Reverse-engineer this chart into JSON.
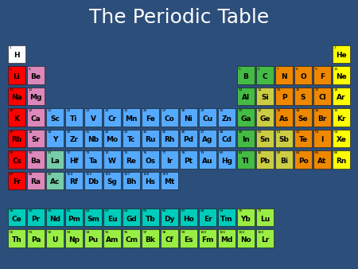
{
  "title": "The Periodic Table",
  "title_color": "white",
  "title_fontsize": 18,
  "bg_outer": "#2C4E7A",
  "bg_inner": "#000000",
  "elements": [
    {
      "sym": "H",
      "num": 1,
      "col": 0,
      "row": 0,
      "color": "#FFFFFF"
    },
    {
      "sym": "He",
      "num": 2,
      "col": 17,
      "row": 0,
      "color": "#FFFF00"
    },
    {
      "sym": "Li",
      "num": 3,
      "col": 0,
      "row": 1,
      "color": "#FF0000"
    },
    {
      "sym": "Be",
      "num": 4,
      "col": 1,
      "row": 1,
      "color": "#DD88BB"
    },
    {
      "sym": "B",
      "num": 5,
      "col": 12,
      "row": 1,
      "color": "#44BB44"
    },
    {
      "sym": "C",
      "num": 6,
      "col": 13,
      "row": 1,
      "color": "#44BB44"
    },
    {
      "sym": "N",
      "num": 7,
      "col": 14,
      "row": 1,
      "color": "#EE8800"
    },
    {
      "sym": "O",
      "num": 8,
      "col": 15,
      "row": 1,
      "color": "#EE8800"
    },
    {
      "sym": "F",
      "num": 9,
      "col": 16,
      "row": 1,
      "color": "#EE8800"
    },
    {
      "sym": "Ne",
      "num": 10,
      "col": 17,
      "row": 1,
      "color": "#FFFF00"
    },
    {
      "sym": "Na",
      "num": 11,
      "col": 0,
      "row": 2,
      "color": "#FF0000"
    },
    {
      "sym": "Mg",
      "num": 12,
      "col": 1,
      "row": 2,
      "color": "#DD88BB"
    },
    {
      "sym": "Al",
      "num": 13,
      "col": 12,
      "row": 2,
      "color": "#44BB44"
    },
    {
      "sym": "Si",
      "num": 14,
      "col": 13,
      "row": 2,
      "color": "#CCCC44"
    },
    {
      "sym": "P",
      "num": 15,
      "col": 14,
      "row": 2,
      "color": "#EE8800"
    },
    {
      "sym": "S",
      "num": 16,
      "col": 15,
      "row": 2,
      "color": "#EE8800"
    },
    {
      "sym": "Cl",
      "num": 17,
      "col": 16,
      "row": 2,
      "color": "#EE8800"
    },
    {
      "sym": "Ar",
      "num": 18,
      "col": 17,
      "row": 2,
      "color": "#FFFF00"
    },
    {
      "sym": "K",
      "num": 19,
      "col": 0,
      "row": 3,
      "color": "#FF0000"
    },
    {
      "sym": "Ca",
      "num": 20,
      "col": 1,
      "row": 3,
      "color": "#DD88BB"
    },
    {
      "sym": "Sc",
      "num": 21,
      "col": 2,
      "row": 3,
      "color": "#55AAFF"
    },
    {
      "sym": "Ti",
      "num": 22,
      "col": 3,
      "row": 3,
      "color": "#55AAFF"
    },
    {
      "sym": "V",
      "num": 23,
      "col": 4,
      "row": 3,
      "color": "#55AAFF"
    },
    {
      "sym": "Cr",
      "num": 24,
      "col": 5,
      "row": 3,
      "color": "#55AAFF"
    },
    {
      "sym": "Mn",
      "num": 25,
      "col": 6,
      "row": 3,
      "color": "#55AAFF"
    },
    {
      "sym": "Fe",
      "num": 26,
      "col": 7,
      "row": 3,
      "color": "#55AAFF"
    },
    {
      "sym": "Co",
      "num": 27,
      "col": 8,
      "row": 3,
      "color": "#55AAFF"
    },
    {
      "sym": "Ni",
      "num": 28,
      "col": 9,
      "row": 3,
      "color": "#55AAFF"
    },
    {
      "sym": "Cu",
      "num": 29,
      "col": 10,
      "row": 3,
      "color": "#55AAFF"
    },
    {
      "sym": "Zn",
      "num": 30,
      "col": 11,
      "row": 3,
      "color": "#55AAFF"
    },
    {
      "sym": "Ga",
      "num": 31,
      "col": 12,
      "row": 3,
      "color": "#44BB44"
    },
    {
      "sym": "Ge",
      "num": 32,
      "col": 13,
      "row": 3,
      "color": "#CCCC44"
    },
    {
      "sym": "As",
      "num": 33,
      "col": 14,
      "row": 3,
      "color": "#EE8800"
    },
    {
      "sym": "Se",
      "num": 34,
      "col": 15,
      "row": 3,
      "color": "#EE8800"
    },
    {
      "sym": "Br",
      "num": 35,
      "col": 16,
      "row": 3,
      "color": "#EE8800"
    },
    {
      "sym": "Kr",
      "num": 36,
      "col": 17,
      "row": 3,
      "color": "#FFFF00"
    },
    {
      "sym": "Rb",
      "num": 37,
      "col": 0,
      "row": 4,
      "color": "#FF0000"
    },
    {
      "sym": "Sr",
      "num": 38,
      "col": 1,
      "row": 4,
      "color": "#DD88BB"
    },
    {
      "sym": "Y",
      "num": 39,
      "col": 2,
      "row": 4,
      "color": "#55AAFF"
    },
    {
      "sym": "Zr",
      "num": 40,
      "col": 3,
      "row": 4,
      "color": "#55AAFF"
    },
    {
      "sym": "Nb",
      "num": 41,
      "col": 4,
      "row": 4,
      "color": "#55AAFF"
    },
    {
      "sym": "Mo",
      "num": 42,
      "col": 5,
      "row": 4,
      "color": "#55AAFF"
    },
    {
      "sym": "Tc",
      "num": 43,
      "col": 6,
      "row": 4,
      "color": "#55AAFF"
    },
    {
      "sym": "Ru",
      "num": 44,
      "col": 7,
      "row": 4,
      "color": "#55AAFF"
    },
    {
      "sym": "Rh",
      "num": 45,
      "col": 8,
      "row": 4,
      "color": "#55AAFF"
    },
    {
      "sym": "Pd",
      "num": 46,
      "col": 9,
      "row": 4,
      "color": "#55AAFF"
    },
    {
      "sym": "Ag",
      "num": 47,
      "col": 10,
      "row": 4,
      "color": "#55AAFF"
    },
    {
      "sym": "Cd",
      "num": 48,
      "col": 11,
      "row": 4,
      "color": "#55AAFF"
    },
    {
      "sym": "In",
      "num": 49,
      "col": 12,
      "row": 4,
      "color": "#44BB44"
    },
    {
      "sym": "Sn",
      "num": 50,
      "col": 13,
      "row": 4,
      "color": "#CCCC44"
    },
    {
      "sym": "Sb",
      "num": 51,
      "col": 14,
      "row": 4,
      "color": "#CCCC44"
    },
    {
      "sym": "Te",
      "num": 52,
      "col": 15,
      "row": 4,
      "color": "#EE8800"
    },
    {
      "sym": "I",
      "num": 53,
      "col": 16,
      "row": 4,
      "color": "#EE8800"
    },
    {
      "sym": "Xe",
      "num": 54,
      "col": 17,
      "row": 4,
      "color": "#FFFF00"
    },
    {
      "sym": "Cs",
      "num": 55,
      "col": 0,
      "row": 5,
      "color": "#FF0000"
    },
    {
      "sym": "Ba",
      "num": 56,
      "col": 1,
      "row": 5,
      "color": "#DD88BB"
    },
    {
      "sym": "La",
      "num": 57,
      "col": 2,
      "row": 5,
      "color": "#77CCAA"
    },
    {
      "sym": "Hf",
      "num": 72,
      "col": 3,
      "row": 5,
      "color": "#55AAFF"
    },
    {
      "sym": "Ta",
      "num": 73,
      "col": 4,
      "row": 5,
      "color": "#55AAFF"
    },
    {
      "sym": "W",
      "num": 74,
      "col": 5,
      "row": 5,
      "color": "#55AAFF"
    },
    {
      "sym": "Re",
      "num": 75,
      "col": 6,
      "row": 5,
      "color": "#55AAFF"
    },
    {
      "sym": "Os",
      "num": 76,
      "col": 7,
      "row": 5,
      "color": "#55AAFF"
    },
    {
      "sym": "Ir",
      "num": 77,
      "col": 8,
      "row": 5,
      "color": "#55AAFF"
    },
    {
      "sym": "Pt",
      "num": 78,
      "col": 9,
      "row": 5,
      "color": "#55AAFF"
    },
    {
      "sym": "Au",
      "num": 79,
      "col": 10,
      "row": 5,
      "color": "#55AAFF"
    },
    {
      "sym": "Hg",
      "num": 80,
      "col": 11,
      "row": 5,
      "color": "#55AAFF"
    },
    {
      "sym": "Tl",
      "num": 81,
      "col": 12,
      "row": 5,
      "color": "#44BB44"
    },
    {
      "sym": "Pb",
      "num": 82,
      "col": 13,
      "row": 5,
      "color": "#CCCC44"
    },
    {
      "sym": "Bi",
      "num": 83,
      "col": 14,
      "row": 5,
      "color": "#CCCC44"
    },
    {
      "sym": "Po",
      "num": 84,
      "col": 15,
      "row": 5,
      "color": "#EE8800"
    },
    {
      "sym": "At",
      "num": 85,
      "col": 16,
      "row": 5,
      "color": "#EE8800"
    },
    {
      "sym": "Rn",
      "num": 86,
      "col": 17,
      "row": 5,
      "color": "#FFFF00"
    },
    {
      "sym": "Fr",
      "num": 87,
      "col": 0,
      "row": 6,
      "color": "#FF0000"
    },
    {
      "sym": "Ra",
      "num": 88,
      "col": 1,
      "row": 6,
      "color": "#DD88BB"
    },
    {
      "sym": "Ac",
      "num": 89,
      "col": 2,
      "row": 6,
      "color": "#77CCAA"
    },
    {
      "sym": "Rf",
      "num": 104,
      "col": 3,
      "row": 6,
      "color": "#55AAFF"
    },
    {
      "sym": "Db",
      "num": 105,
      "col": 4,
      "row": 6,
      "color": "#55AAFF"
    },
    {
      "sym": "Sg",
      "num": 106,
      "col": 5,
      "row": 6,
      "color": "#55AAFF"
    },
    {
      "sym": "Bh",
      "num": 107,
      "col": 6,
      "row": 6,
      "color": "#55AAFF"
    },
    {
      "sym": "Hs",
      "num": 108,
      "col": 7,
      "row": 6,
      "color": "#55AAFF"
    },
    {
      "sym": "Mt",
      "num": 109,
      "col": 8,
      "row": 6,
      "color": "#55AAFF"
    },
    {
      "sym": "Ce",
      "num": 58,
      "col": 0,
      "row": 8,
      "color": "#00CCBB"
    },
    {
      "sym": "Pr",
      "num": 59,
      "col": 1,
      "row": 8,
      "color": "#00CCBB"
    },
    {
      "sym": "Nd",
      "num": 60,
      "col": 2,
      "row": 8,
      "color": "#00CCBB"
    },
    {
      "sym": "Pm",
      "num": 61,
      "col": 3,
      "row": 8,
      "color": "#00CCBB"
    },
    {
      "sym": "Sm",
      "num": 62,
      "col": 4,
      "row": 8,
      "color": "#00CCBB"
    },
    {
      "sym": "Eu",
      "num": 63,
      "col": 5,
      "row": 8,
      "color": "#00CCBB"
    },
    {
      "sym": "Gd",
      "num": 64,
      "col": 6,
      "row": 8,
      "color": "#00CCBB"
    },
    {
      "sym": "Tb",
      "num": 65,
      "col": 7,
      "row": 8,
      "color": "#00CCBB"
    },
    {
      "sym": "Dy",
      "num": 66,
      "col": 8,
      "row": 8,
      "color": "#00CCBB"
    },
    {
      "sym": "Ho",
      "num": 67,
      "col": 9,
      "row": 8,
      "color": "#00CCBB"
    },
    {
      "sym": "Er",
      "num": 68,
      "col": 10,
      "row": 8,
      "color": "#00CCBB"
    },
    {
      "sym": "Tm",
      "num": 69,
      "col": 11,
      "row": 8,
      "color": "#00CCBB"
    },
    {
      "sym": "Yb",
      "num": 70,
      "col": 12,
      "row": 8,
      "color": "#99EE44"
    },
    {
      "sym": "Lu",
      "num": 71,
      "col": 13,
      "row": 8,
      "color": "#99EE44"
    },
    {
      "sym": "Th",
      "num": 90,
      "col": 0,
      "row": 9,
      "color": "#99EE44"
    },
    {
      "sym": "Pa",
      "num": 91,
      "col": 1,
      "row": 9,
      "color": "#99EE44"
    },
    {
      "sym": "U",
      "num": 92,
      "col": 2,
      "row": 9,
      "color": "#99EE44"
    },
    {
      "sym": "Np",
      "num": 93,
      "col": 3,
      "row": 9,
      "color": "#99EE44"
    },
    {
      "sym": "Pu",
      "num": 94,
      "col": 4,
      "row": 9,
      "color": "#99EE44"
    },
    {
      "sym": "Am",
      "num": 95,
      "col": 5,
      "row": 9,
      "color": "#99EE44"
    },
    {
      "sym": "Cm",
      "num": 96,
      "col": 6,
      "row": 9,
      "color": "#99EE44"
    },
    {
      "sym": "Bk",
      "num": 97,
      "col": 7,
      "row": 9,
      "color": "#99EE44"
    },
    {
      "sym": "Cf",
      "num": 98,
      "col": 8,
      "row": 9,
      "color": "#99EE44"
    },
    {
      "sym": "Es",
      "num": 99,
      "col": 9,
      "row": 9,
      "color": "#99EE44"
    },
    {
      "sym": "Fm",
      "num": 100,
      "col": 10,
      "row": 9,
      "color": "#99EE44"
    },
    {
      "sym": "Md",
      "num": 101,
      "col": 11,
      "row": 9,
      "color": "#99EE44"
    },
    {
      "sym": "No",
      "num": 102,
      "col": 12,
      "row": 9,
      "color": "#99EE44"
    },
    {
      "sym": "Lr",
      "num": 103,
      "col": 13,
      "row": 9,
      "color": "#99EE44"
    }
  ]
}
